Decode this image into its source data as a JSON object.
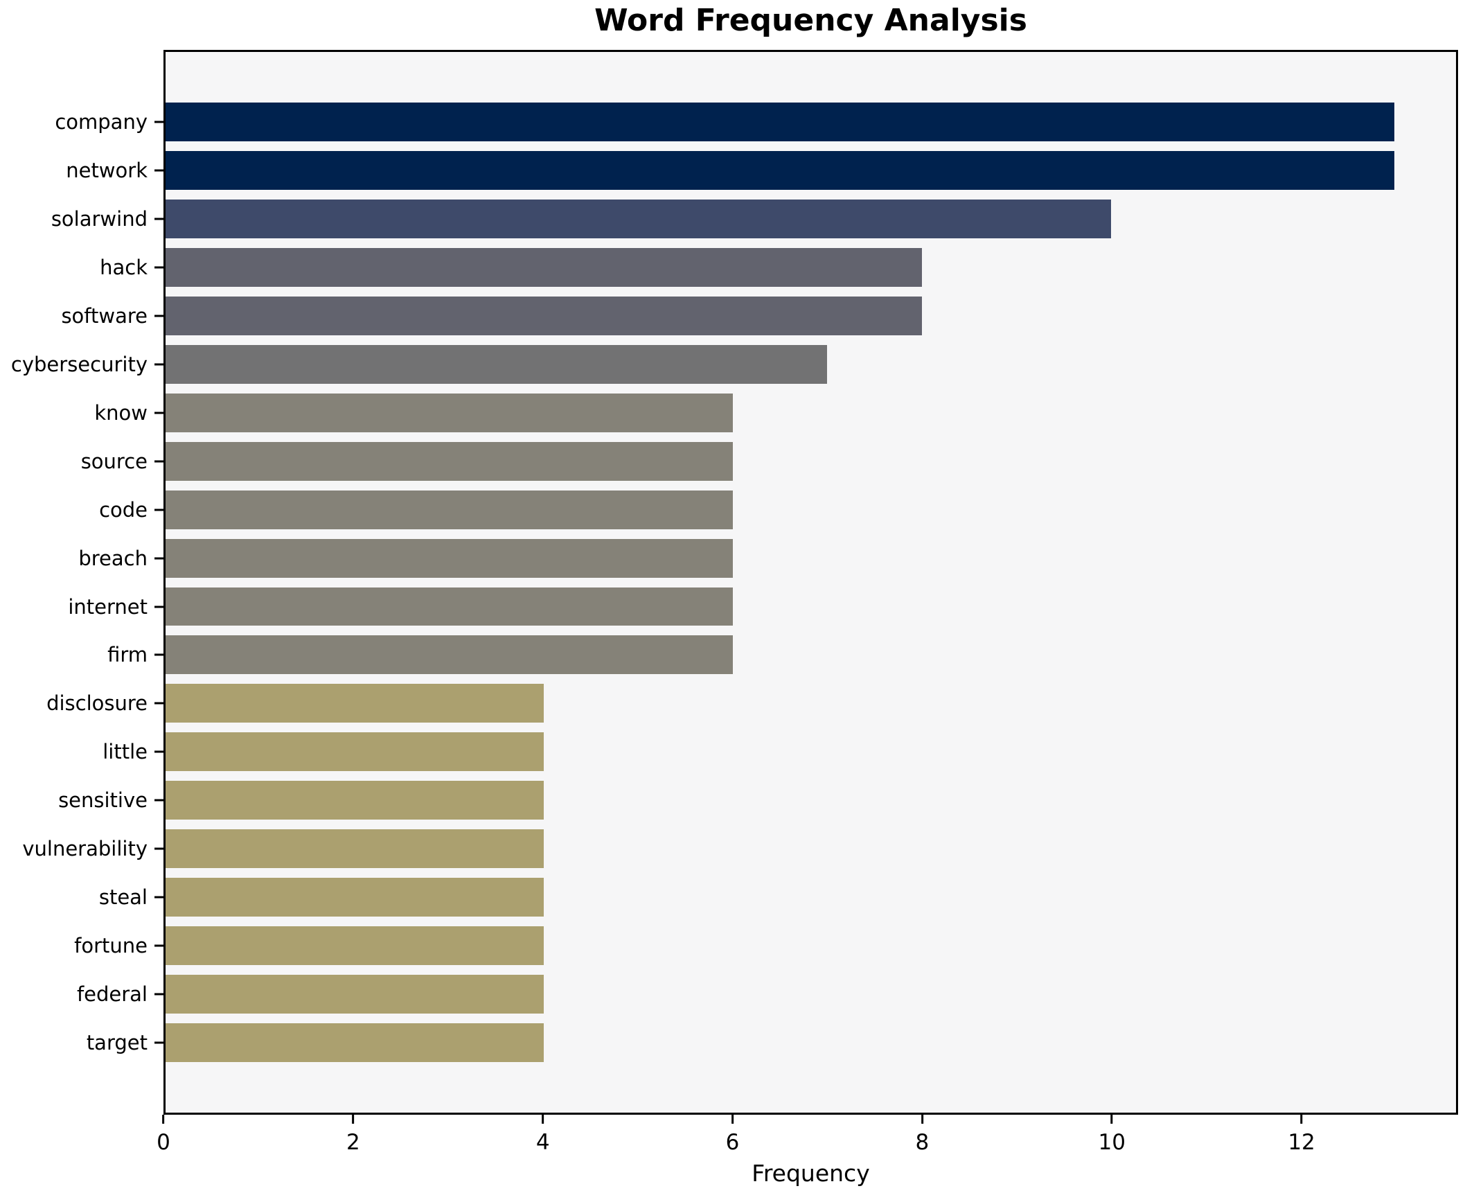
{
  "chart_data": {
    "type": "bar",
    "orientation": "horizontal",
    "title": "Word Frequency Analysis",
    "xlabel": "Frequency",
    "ylabel": "",
    "categories": [
      "company",
      "network",
      "solarwind",
      "hack",
      "software",
      "cybersecurity",
      "know",
      "source",
      "code",
      "breach",
      "internet",
      "firm",
      "disclosure",
      "little",
      "sensitive",
      "vulnerability",
      "steal",
      "fortune",
      "federal",
      "target"
    ],
    "values": [
      13,
      13,
      10,
      8,
      8,
      7,
      6,
      6,
      6,
      6,
      6,
      6,
      4,
      4,
      4,
      4,
      4,
      4,
      4,
      4
    ],
    "bar_colors": [
      "#00224E",
      "#00224E",
      "#3E4A6A",
      "#62636E",
      "#62636E",
      "#727273",
      "#858278",
      "#858278",
      "#858278",
      "#858278",
      "#858278",
      "#858278",
      "#ABA06F",
      "#ABA06F",
      "#ABA06F",
      "#ABA06F",
      "#ABA06F",
      "#ABA06F",
      "#ABA06F",
      "#ABA06F"
    ],
    "xlim": [
      0,
      13.65
    ],
    "xticks": [
      0,
      2,
      4,
      6,
      8,
      10,
      12
    ],
    "grid": false,
    "legend": "none",
    "plot_background": "#F6F6F7",
    "frame_color": "#000000"
  }
}
